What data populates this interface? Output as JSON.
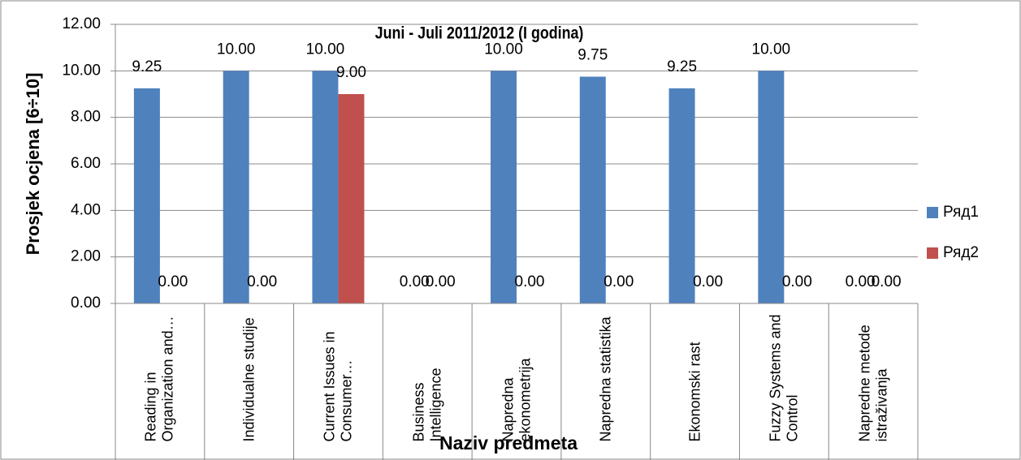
{
  "chart_data": {
    "type": "bar",
    "title": "Juni - Juli 2011/2012 (I godina)",
    "y_label": "Prosjek ocjena [6÷10]",
    "x_label": "Naziv predmeta",
    "categories": [
      "Reading in Organization and…",
      "Individualne studije",
      "Current Issues in Consumer…",
      "Business Intelligence",
      "Napredna ekonometrija",
      "Napredna statistika",
      "Ekonomski rast",
      "Fuzzy Systems and Control",
      "Napredne metode istraživanja"
    ],
    "series": [
      {
        "name": "Ряд1",
        "color": "#4f81bd",
        "values": [
          9.25,
          10,
          10,
          0,
          10,
          9.75,
          9.25,
          10,
          0
        ],
        "value_labels": [
          "9.25",
          "10.00",
          "10.00",
          "0.00",
          "10.00",
          "9.75",
          "9.25",
          "10.00",
          "0.00"
        ]
      },
      {
        "name": "Ряд2",
        "color": "#c0504d",
        "values": [
          0,
          0,
          9,
          0,
          0,
          0,
          0,
          0,
          0
        ],
        "value_labels": [
          "0.00",
          "0.00",
          "9.00",
          "0.00",
          "0.00",
          "0.00",
          "0.00",
          "0.00",
          "0.00"
        ]
      }
    ],
    "ylim": [
      0,
      12
    ],
    "yticks": [
      {
        "value": 0,
        "label": "0.00"
      },
      {
        "value": 2,
        "label": "2.00"
      },
      {
        "value": 4,
        "label": "4.00"
      },
      {
        "value": 6,
        "label": "6.00"
      },
      {
        "value": 8,
        "label": "8.00"
      },
      {
        "value": 10,
        "label": "10.00"
      },
      {
        "value": 12,
        "label": "12.00"
      }
    ],
    "grid": true,
    "legend": "right"
  }
}
